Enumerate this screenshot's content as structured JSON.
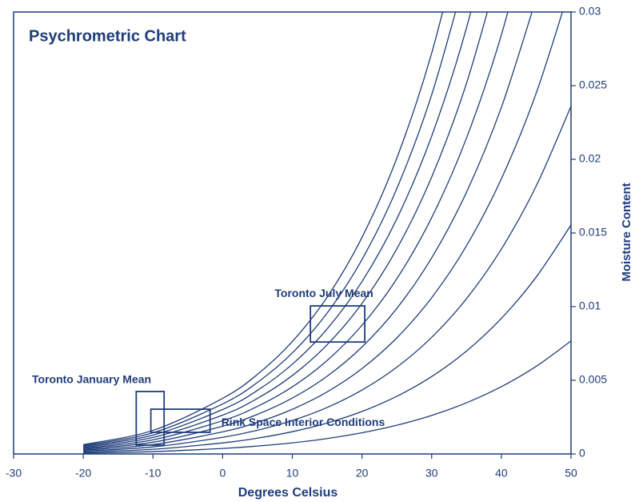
{
  "chart_data": {
    "type": "line",
    "title": "Psychrometric Chart",
    "x_label": "Degrees Celsius",
    "y_label": "Moisture Content",
    "xlim": [
      -30,
      50
    ],
    "xticks": [
      -30,
      -20,
      -10,
      0,
      10,
      20,
      30,
      40,
      50
    ],
    "ylim": [
      0,
      0.03
    ],
    "yticks": [
      0,
      0.005,
      0.01,
      0.015,
      0.02,
      0.025,
      0.03
    ],
    "y_axis_side": "right",
    "x": [
      -20,
      -10,
      0,
      5,
      10,
      15,
      20,
      25,
      30,
      35,
      40,
      45,
      50
    ],
    "series": [
      {
        "color": "#1f3d7a",
        "values": [
          0.000634,
          0.0016,
          0.003775,
          0.005403,
          0.007631,
          0.010646,
          0.014698,
          0.020081,
          0.027205,
          0.03658,
          null,
          null,
          null
        ]
      },
      {
        "color": "#1f3d7a",
        "values": [
          0.000571,
          0.001439,
          0.003395,
          0.004858,
          0.006859,
          0.009565,
          0.013197,
          0.018015,
          0.024378,
          0.03273,
          null,
          null,
          null
        ]
      },
      {
        "color": "#1f3d7a",
        "values": [
          0.000507,
          0.001279,
          0.003016,
          0.004315,
          0.00609,
          0.008487,
          0.011703,
          0.015962,
          0.021575,
          0.028924,
          0.038507,
          null,
          null
        ]
      },
      {
        "color": "#1f3d7a",
        "values": [
          0.000444,
          0.001119,
          0.002638,
          0.003772,
          0.005322,
          0.007414,
          0.010216,
          0.013922,
          0.018797,
          0.025162,
          0.033435,
          null,
          null
        ]
      },
      {
        "color": "#1f3d7a",
        "values": [
          0.00038,
          0.000959,
          0.002259,
          0.00323,
          0.004556,
          0.006344,
          0.008736,
          0.011895,
          0.016042,
          0.021444,
          0.02844,
          0.037469,
          null
        ]
      },
      {
        "color": "#1f3d7a",
        "values": [
          0.000317,
          0.000799,
          0.001882,
          0.00269,
          0.003792,
          0.005278,
          0.007263,
          0.009881,
          0.013311,
          0.017768,
          0.023521,
          0.030914,
          null
        ]
      },
      {
        "color": "#1f3d7a",
        "values": [
          0.000254,
          0.000639,
          0.001504,
          0.00215,
          0.00303,
          0.004215,
          0.005797,
          0.00788,
          0.010604,
          0.014133,
          0.018676,
          0.024488,
          0.031879
        ]
      },
      {
        "color": "#1f3d7a",
        "values": [
          0.00019,
          0.000479,
          0.001128,
          0.001611,
          0.00227,
          0.003156,
          0.004338,
          0.005891,
          0.007919,
          0.01054,
          0.013902,
          0.018187,
          0.023607
        ]
      },
      {
        "color": "#1f3d7a",
        "values": [
          0.000127,
          0.000319,
          0.000751,
          0.001073,
          0.001511,
          0.0021,
          0.002885,
          0.003915,
          0.005257,
          0.006987,
          0.0092,
          0.012008,
          0.015541
        ]
      },
      {
        "color": "#1f3d7a",
        "values": [
          6.3e-05,
          0.00016,
          0.000375,
          0.000536,
          0.000755,
          0.001048,
          0.001439,
          0.001951,
          0.002617,
          0.003474,
          0.004566,
          0.005946,
          0.00767
        ]
      }
    ],
    "regions": [
      {
        "label": "Toronto July Mean",
        "x": [
          12.6,
          20.4
        ],
        "y": [
          0.0076,
          0.01005
        ]
      },
      {
        "label": "Toronto January Mean",
        "x": [
          -12.4,
          -8.4
        ],
        "y": [
          0.0006,
          0.00424
        ]
      },
      {
        "label": "Rink Space Interior Conditions",
        "x": [
          -10.3,
          -1.8
        ],
        "y": [
          0.00147,
          0.00304
        ]
      }
    ]
  }
}
